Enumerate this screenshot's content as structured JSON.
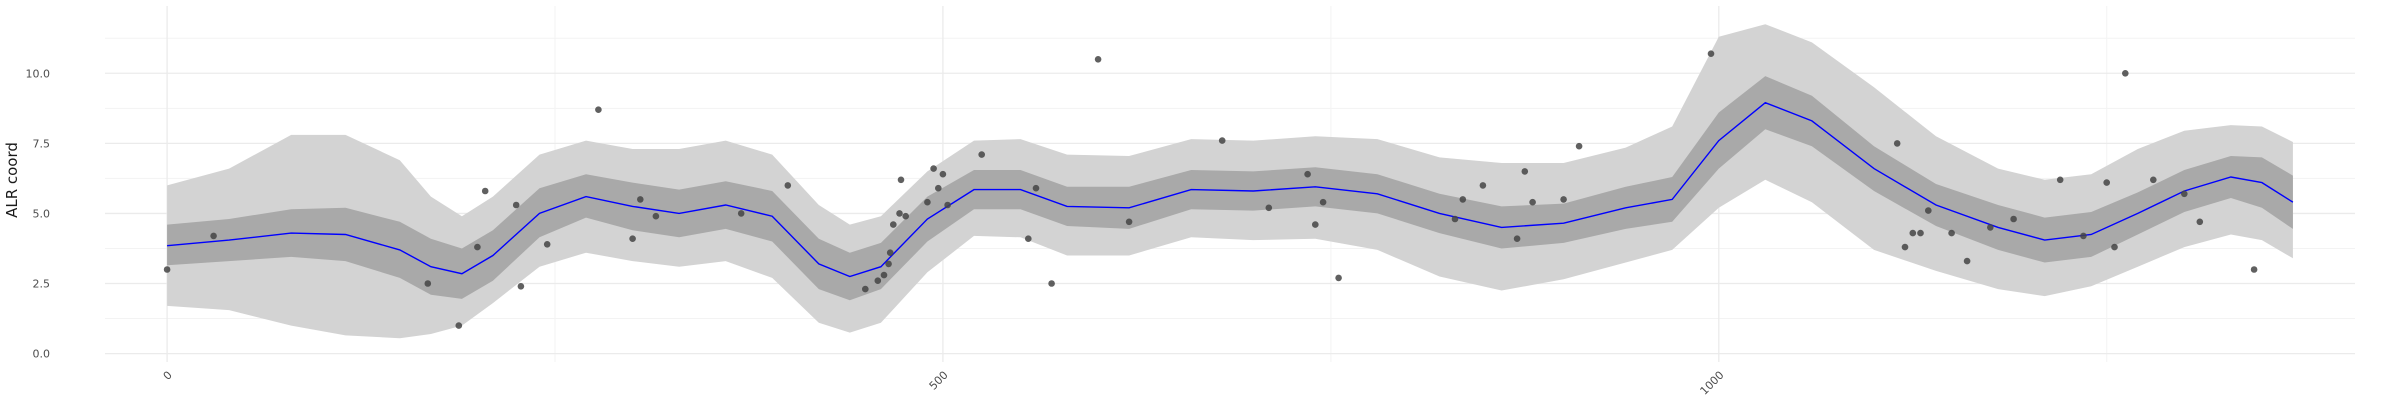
{
  "chart_data": {
    "type": "scatter",
    "title": "",
    "xlabel": "",
    "ylabel": "ALR coord",
    "xlim": [
      -40,
      1410
    ],
    "ylim": [
      -0.3,
      12.4
    ],
    "x_ticks": [
      0,
      500,
      1000
    ],
    "x_tick_labels": [
      "0",
      "500",
      "1000"
    ],
    "y_ticks": [
      0,
      2.5,
      5,
      7.5,
      10
    ],
    "y_tick_labels": [
      "0.0",
      "2.5",
      "5.0",
      "7.5",
      "10.0"
    ],
    "x_minor_ticks": [
      250,
      750,
      1250
    ],
    "y_minor_ticks": [
      1.25,
      3.75,
      6.25,
      8.75,
      11.25
    ],
    "grid": true,
    "legend": "none",
    "colors": {
      "mean_line": "#0000ff",
      "inner_band": "#a9a9a9",
      "outer_band": "#d3d3d3",
      "points": "#444444",
      "grid": "#ebebeb"
    },
    "series": [
      {
        "kind": "points",
        "x": [
          0,
          30,
          168,
          188,
          200,
          205,
          225,
          228,
          245,
          278,
          300,
          305,
          315,
          370,
          400,
          450,
          458,
          462,
          465,
          466,
          468,
          472,
          473,
          476,
          490,
          494,
          497,
          500,
          503,
          525,
          555,
          560,
          570,
          600,
          620,
          680,
          710,
          735,
          740,
          745,
          755,
          830,
          835,
          848,
          870,
          875,
          880,
          900,
          910,
          995,
          1115,
          1120,
          1125,
          1130,
          1135,
          1150,
          1160,
          1175,
          1190,
          1220,
          1235,
          1250,
          1255,
          1262,
          1280,
          1300,
          1310,
          1345
        ],
        "y": [
          3.0,
          4.2,
          2.5,
          1.0,
          3.8,
          5.8,
          5.3,
          2.4,
          3.9,
          8.7,
          4.1,
          5.5,
          4.9,
          5.0,
          6.0,
          2.3,
          2.6,
          2.8,
          3.2,
          3.6,
          4.6,
          5.0,
          6.2,
          4.9,
          5.4,
          6.6,
          5.9,
          6.4,
          5.3,
          7.1,
          4.1,
          5.9,
          2.5,
          10.5,
          4.7,
          7.6,
          5.2,
          6.4,
          4.6,
          5.4,
          2.7,
          4.8,
          5.5,
          6.0,
          4.1,
          6.5,
          5.4,
          5.5,
          7.4,
          10.7,
          7.5,
          3.8,
          4.3,
          4.3,
          5.1,
          4.3,
          3.3,
          4.5,
          4.8,
          6.2,
          4.2,
          6.1,
          3.8,
          10.0,
          6.2,
          5.7,
          4.7,
          3.0
        ],
        "name": ""
      },
      {
        "kind": "mean_curve",
        "x": [
          0,
          40,
          80,
          115,
          150,
          170,
          190,
          210,
          240,
          270,
          300,
          330,
          360,
          390,
          420,
          440,
          460,
          490,
          520,
          550,
          580,
          620,
          660,
          700,
          740,
          780,
          820,
          860,
          900,
          940,
          970,
          1000,
          1030,
          1060,
          1100,
          1140,
          1180,
          1210,
          1240,
          1270,
          1300,
          1330,
          1350,
          1370
        ],
        "y": [
          3.85,
          4.05,
          4.3,
          4.25,
          3.7,
          3.1,
          2.85,
          3.5,
          5.0,
          5.6,
          5.25,
          5.0,
          5.3,
          4.9,
          3.2,
          2.75,
          3.1,
          4.8,
          5.85,
          5.85,
          5.25,
          5.2,
          5.85,
          5.8,
          5.95,
          5.7,
          5.0,
          4.5,
          4.65,
          5.2,
          5.5,
          7.6,
          8.95,
          8.3,
          6.6,
          5.3,
          4.5,
          4.05,
          4.25,
          5.0,
          5.8,
          6.3,
          6.1,
          5.4
        ],
        "name": ""
      },
      {
        "kind": "inner_band",
        "x": [
          0,
          40,
          80,
          115,
          150,
          170,
          190,
          210,
          240,
          270,
          300,
          330,
          360,
          390,
          420,
          440,
          460,
          490,
          520,
          550,
          580,
          620,
          660,
          700,
          740,
          780,
          820,
          860,
          900,
          940,
          970,
          1000,
          1030,
          1060,
          1100,
          1140,
          1180,
          1210,
          1240,
          1270,
          1300,
          1330,
          1350,
          1370
        ],
        "lower": [
          3.15,
          3.3,
          3.45,
          3.3,
          2.7,
          2.1,
          1.95,
          2.6,
          4.15,
          4.85,
          4.4,
          4.15,
          4.45,
          4.0,
          2.3,
          1.9,
          2.3,
          4.0,
          5.15,
          5.15,
          4.55,
          4.45,
          5.15,
          5.1,
          5.25,
          5.0,
          4.3,
          3.75,
          3.95,
          4.45,
          4.7,
          6.6,
          8.0,
          7.4,
          5.8,
          4.55,
          3.7,
          3.25,
          3.45,
          4.25,
          5.05,
          5.55,
          5.2,
          4.45
        ],
        "upper": [
          4.6,
          4.8,
          5.15,
          5.2,
          4.7,
          4.1,
          3.75,
          4.4,
          5.9,
          6.4,
          6.1,
          5.85,
          6.15,
          5.8,
          4.1,
          3.6,
          3.95,
          5.6,
          6.55,
          6.55,
          5.95,
          5.95,
          6.55,
          6.5,
          6.65,
          6.4,
          5.7,
          5.25,
          5.35,
          5.95,
          6.3,
          8.6,
          9.9,
          9.2,
          7.4,
          6.05,
          5.3,
          4.85,
          5.05,
          5.75,
          6.55,
          7.05,
          7.0,
          6.35
        ]
      },
      {
        "kind": "outer_band",
        "x": [
          0,
          40,
          80,
          115,
          150,
          170,
          190,
          210,
          240,
          270,
          300,
          330,
          360,
          390,
          420,
          440,
          460,
          490,
          520,
          550,
          580,
          620,
          660,
          700,
          740,
          780,
          820,
          860,
          900,
          940,
          970,
          1000,
          1030,
          1060,
          1100,
          1140,
          1180,
          1210,
          1240,
          1270,
          1300,
          1330,
          1350,
          1370
        ],
        "lower": [
          1.7,
          1.55,
          1.0,
          0.65,
          0.55,
          0.7,
          1.0,
          1.8,
          3.1,
          3.6,
          3.3,
          3.1,
          3.3,
          2.7,
          1.1,
          0.75,
          1.1,
          2.9,
          4.2,
          4.15,
          3.5,
          3.5,
          4.15,
          4.05,
          4.1,
          3.7,
          2.75,
          2.25,
          2.65,
          3.25,
          3.7,
          5.2,
          6.2,
          5.4,
          3.7,
          2.95,
          2.3,
          2.05,
          2.4,
          3.1,
          3.8,
          4.25,
          4.05,
          3.4
        ],
        "upper": [
          6.0,
          6.6,
          7.8,
          7.8,
          6.9,
          5.6,
          4.9,
          5.6,
          7.1,
          7.6,
          7.3,
          7.3,
          7.6,
          7.1,
          5.3,
          4.6,
          4.9,
          6.5,
          7.6,
          7.65,
          7.1,
          7.05,
          7.65,
          7.6,
          7.75,
          7.65,
          7.0,
          6.8,
          6.8,
          7.35,
          8.1,
          11.3,
          11.75,
          11.1,
          9.5,
          7.75,
          6.6,
          6.2,
          6.4,
          7.3,
          7.95,
          8.15,
          8.1,
          7.55
        ]
      }
    ]
  }
}
